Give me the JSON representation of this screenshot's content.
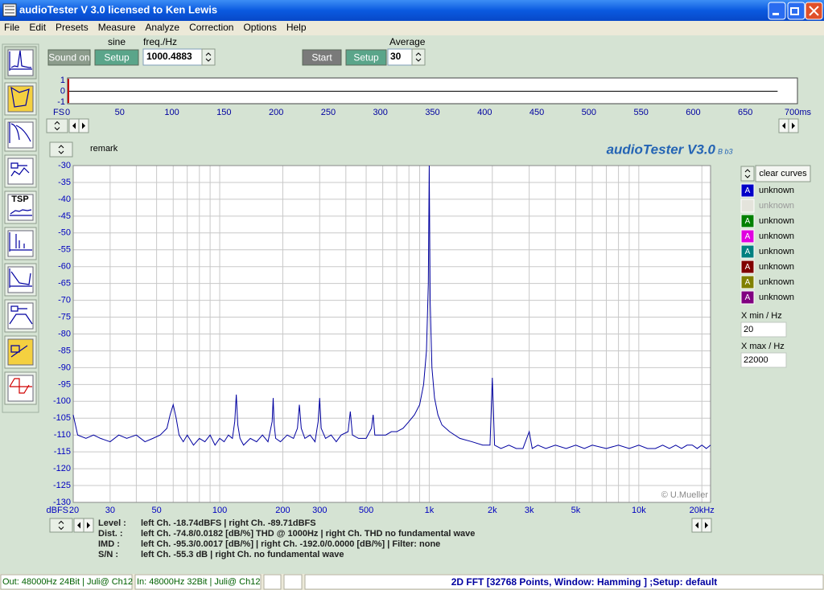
{
  "window": {
    "title": "audioTester  V 3.0   licensed to Ken Lewis"
  },
  "menu": [
    "File",
    "Edit",
    "Presets",
    "Measure",
    "Analyze",
    "Correction",
    "Options",
    "Help"
  ],
  "toolbar": {
    "tsp": "TSP"
  },
  "controls": {
    "sound_on": "Sound on",
    "sine": "sine",
    "setup": "Setup",
    "freq_label": "freq./Hz",
    "freq": "1000.4883",
    "start": "Start",
    "setup2": "Setup",
    "average_label": "Average",
    "average": "30",
    "remark": "remark",
    "brand": "audioTester V3.0",
    "brand_sub": "B b3",
    "copyright": "© U.Mueller"
  },
  "chart_data": [
    {
      "type": "line",
      "unit_label": "FS",
      "xlim": [
        0,
        700
      ],
      "xticks": [
        0,
        50,
        100,
        150,
        200,
        250,
        300,
        350,
        400,
        450,
        500,
        550,
        600,
        650,
        {
          "value": 700,
          "label": "700ms"
        }
      ],
      "ylim": [
        -1,
        1
      ],
      "yticks": [
        1,
        0,
        -1
      ],
      "x": [
        0,
        681
      ],
      "values": [
        0,
        0
      ],
      "color": "#000000"
    },
    {
      "type": "line",
      "unit_label": "dBFS",
      "xscale": "log",
      "grid": true,
      "color": "#0000a0",
      "xlim": [
        20,
        22000
      ],
      "xticks": [
        20,
        30,
        50,
        100,
        200,
        300,
        500,
        {
          "value": 1000,
          "label": "1k"
        },
        {
          "value": 2000,
          "label": "2k"
        },
        {
          "value": 3000,
          "label": "3k"
        },
        {
          "value": 5000,
          "label": "5k"
        },
        {
          "value": 10000,
          "label": "10k"
        },
        {
          "value": 20000,
          "label": "20kHz"
        }
      ],
      "xminorticks": [
        40,
        60,
        70,
        80,
        90,
        400,
        600,
        700,
        800,
        900,
        4000,
        6000,
        7000,
        8000,
        9000
      ],
      "ylim": [
        -130,
        -30
      ],
      "yticks": [
        -30,
        -35,
        -40,
        -45,
        -50,
        -55,
        -60,
        -65,
        -70,
        -75,
        -80,
        -85,
        -90,
        -95,
        -100,
        -105,
        -110,
        -115,
        -120,
        -125,
        -130
      ],
      "x": [
        20,
        21,
        23,
        25,
        27,
        30,
        33,
        36,
        40,
        44,
        48,
        52,
        56,
        58,
        60,
        62,
        64,
        67,
        70,
        75,
        80,
        85,
        90,
        95,
        100,
        105,
        110,
        115,
        118,
        120,
        122,
        125,
        130,
        140,
        150,
        160,
        170,
        178,
        180,
        182,
        185,
        195,
        210,
        225,
        235,
        240,
        245,
        255,
        270,
        285,
        295,
        300,
        305,
        320,
        340,
        360,
        380,
        410,
        420,
        430,
        460,
        500,
        530,
        540,
        550,
        580,
        620,
        660,
        700,
        750,
        800,
        850,
        900,
        940,
        970,
        990,
        1000,
        1010,
        1030,
        1060,
        1100,
        1150,
        1250,
        1400,
        1600,
        1800,
        1950,
        2000,
        2050,
        2200,
        2400,
        2600,
        2800,
        3000,
        3100,
        3300,
        3600,
        4000,
        4500,
        5000,
        5500,
        6000,
        7000,
        8000,
        9000,
        10000,
        11000,
        12000,
        13000,
        14000,
        15000,
        16000,
        17000,
        18000,
        19000,
        20000,
        21000,
        22000
      ],
      "values": [
        -104,
        -110,
        -111,
        -110,
        -111,
        -112,
        -110,
        -111,
        -110,
        -112,
        -111,
        -110,
        -108,
        -104,
        -101,
        -105,
        -110,
        -112,
        -110,
        -113,
        -111,
        -112,
        -110,
        -113,
        -111,
        -112,
        -110,
        -111,
        -106,
        -98,
        -107,
        -111,
        -113,
        -111,
        -112,
        -110,
        -112,
        -106,
        -99,
        -107,
        -111,
        -112,
        -110,
        -111,
        -108,
        -101,
        -108,
        -111,
        -110,
        -112,
        -106,
        -99,
        -108,
        -111,
        -110,
        -112,
        -110,
        -109,
        -103,
        -110,
        -111,
        -111,
        -108,
        -104,
        -110,
        -110,
        -110,
        -109,
        -109,
        -108,
        -106,
        -104,
        -101,
        -95,
        -85,
        -65,
        -30,
        -70,
        -90,
        -99,
        -104,
        -107,
        -109,
        -111,
        -112,
        -113,
        -113,
        -93,
        -113,
        -114,
        -113,
        -114,
        -114,
        -109,
        -114,
        -113,
        -114,
        -113,
        -114,
        -113,
        -114,
        -113,
        -114,
        -113,
        -114,
        -113,
        -114,
        -114,
        -113,
        -114,
        -113,
        -114,
        -113,
        -113,
        -114,
        -113,
        -114,
        -113
      ]
    }
  ],
  "legend": {
    "clear": "clear curves",
    "curves": [
      {
        "letter": "A",
        "label": "unknown",
        "color": "#0000c8",
        "enabled": true
      },
      {
        "letter": "A",
        "label": "unknown",
        "color": "#e4e4dc",
        "enabled": false
      },
      {
        "letter": "A",
        "label": "unknown",
        "color": "#008000",
        "enabled": true
      },
      {
        "letter": "A",
        "label": "unknown",
        "color": "#e000e0",
        "enabled": true
      },
      {
        "letter": "A",
        "label": "unknown",
        "color": "#008080",
        "enabled": true
      },
      {
        "letter": "A",
        "label": "unknown",
        "color": "#800000",
        "enabled": true
      },
      {
        "letter": "A",
        "label": "unknown",
        "color": "#808000",
        "enabled": true
      },
      {
        "letter": "A",
        "label": "unknown",
        "color": "#800080",
        "enabled": true
      }
    ]
  },
  "xrange": {
    "min_label": "X min / Hz",
    "min": "20",
    "max_label": "X max / Hz",
    "max": "22000"
  },
  "info": [
    [
      "Level :",
      "left Ch. -18.74dBFS | right Ch. -89.71dBFS"
    ],
    [
      "Dist. :",
      "left Ch. -74.8/0.0182 [dB/%] THD @ 1000Hz  | right Ch. THD no fundamental wave"
    ],
    [
      "IMD :",
      "left Ch. -95.3/0.0017 [dB/%]  | right Ch. -192.0/0.0000 [dB/%]  |   Filter: none"
    ],
    [
      "S/N :",
      "left Ch. -55.3 dB  | right Ch.  no fundamental wave"
    ]
  ],
  "status": [
    "Out: 48000Hz 24Bit  | Juli@ Ch12",
    "In: 48000Hz 32Bit  | Juli@ Ch12",
    "2D FFT [32768 Points, Window: Hamming ] ;Setup:  default"
  ]
}
